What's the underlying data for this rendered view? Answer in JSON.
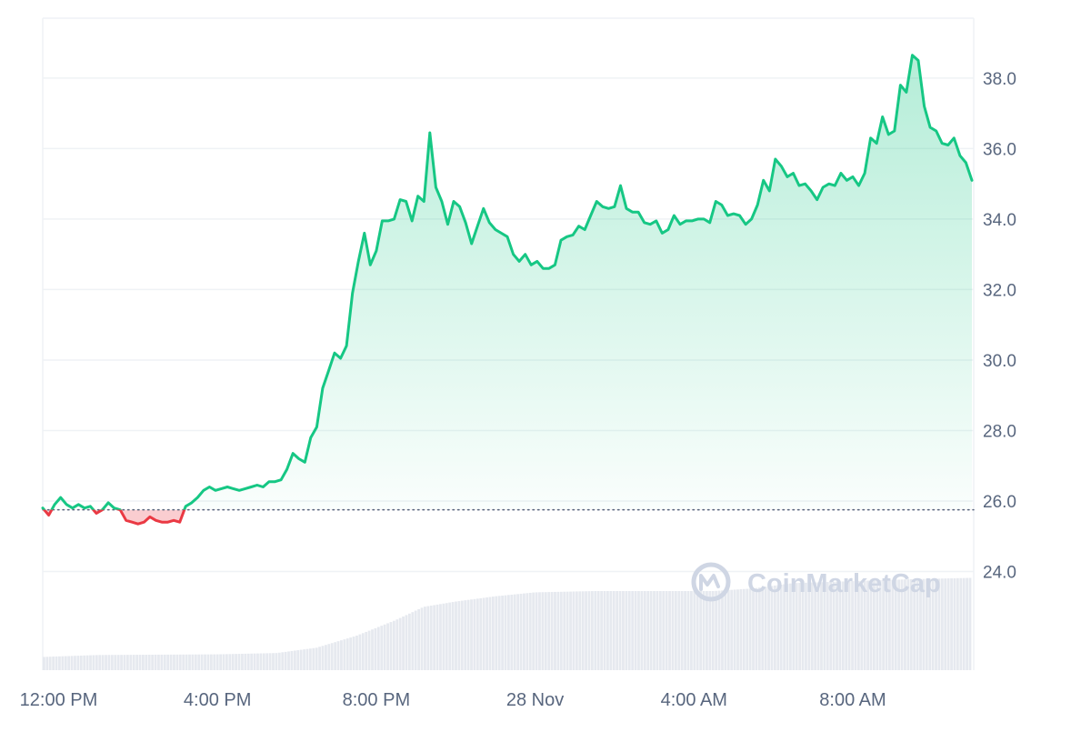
{
  "chart_data": {
    "type": "area",
    "title": "",
    "xlabel": "",
    "ylabel": "",
    "ylim": [
      21.2,
      39.7
    ],
    "x_range": [
      11.6,
      35.0
    ],
    "reference_price": 25.75,
    "y_ticks": [
      {
        "value": 24,
        "label": "24.0"
      },
      {
        "value": 26,
        "label": "26.0"
      },
      {
        "value": 28,
        "label": "28.0"
      },
      {
        "value": 30,
        "label": "30.0"
      },
      {
        "value": 32,
        "label": "32.0"
      },
      {
        "value": 34,
        "label": "34.0"
      },
      {
        "value": 36,
        "label": "36.0"
      },
      {
        "value": 38,
        "label": "38.0"
      }
    ],
    "x_ticks": [
      {
        "value": 12,
        "label": "12:00 PM"
      },
      {
        "value": 16,
        "label": "4:00 PM"
      },
      {
        "value": 20,
        "label": "8:00 PM"
      },
      {
        "value": 24,
        "label": "28 Nov"
      },
      {
        "value": 28,
        "label": "4:00 AM"
      },
      {
        "value": 32,
        "label": "8:00 AM"
      }
    ],
    "series": [
      {
        "values": [
          [
            11.6,
            25.8
          ],
          [
            11.75,
            25.6
          ],
          [
            11.9,
            25.9
          ],
          [
            12.05,
            26.1
          ],
          [
            12.2,
            25.9
          ],
          [
            12.35,
            25.8
          ],
          [
            12.5,
            25.9
          ],
          [
            12.65,
            25.8
          ],
          [
            12.8,
            25.85
          ],
          [
            12.95,
            25.65
          ],
          [
            13.1,
            25.75
          ],
          [
            13.25,
            25.95
          ],
          [
            13.4,
            25.8
          ],
          [
            13.55,
            25.75
          ],
          [
            13.7,
            25.45
          ],
          [
            13.85,
            25.4
          ],
          [
            14.0,
            25.35
          ],
          [
            14.15,
            25.4
          ],
          [
            14.3,
            25.55
          ],
          [
            14.45,
            25.45
          ],
          [
            14.6,
            25.4
          ],
          [
            14.75,
            25.4
          ],
          [
            14.9,
            25.45
          ],
          [
            15.05,
            25.4
          ],
          [
            15.2,
            25.85
          ],
          [
            15.35,
            25.95
          ],
          [
            15.5,
            26.1
          ],
          [
            15.65,
            26.3
          ],
          [
            15.8,
            26.4
          ],
          [
            15.95,
            26.3
          ],
          [
            16.1,
            26.35
          ],
          [
            16.25,
            26.4
          ],
          [
            16.4,
            26.35
          ],
          [
            16.55,
            26.3
          ],
          [
            16.7,
            26.35
          ],
          [
            16.85,
            26.4
          ],
          [
            17.0,
            26.45
          ],
          [
            17.15,
            26.4
          ],
          [
            17.3,
            26.55
          ],
          [
            17.45,
            26.55
          ],
          [
            17.6,
            26.6
          ],
          [
            17.75,
            26.9
          ],
          [
            17.9,
            27.35
          ],
          [
            18.05,
            27.2
          ],
          [
            18.2,
            27.1
          ],
          [
            18.35,
            27.8
          ],
          [
            18.5,
            28.1
          ],
          [
            18.65,
            29.2
          ],
          [
            18.8,
            29.7
          ],
          [
            18.95,
            30.2
          ],
          [
            19.1,
            30.05
          ],
          [
            19.25,
            30.4
          ],
          [
            19.4,
            31.9
          ],
          [
            19.55,
            32.8
          ],
          [
            19.7,
            33.6
          ],
          [
            19.85,
            32.7
          ],
          [
            20.0,
            33.1
          ],
          [
            20.15,
            33.95
          ],
          [
            20.3,
            33.95
          ],
          [
            20.45,
            34.0
          ],
          [
            20.6,
            34.55
          ],
          [
            20.75,
            34.5
          ],
          [
            20.9,
            33.95
          ],
          [
            21.05,
            34.65
          ],
          [
            21.2,
            34.5
          ],
          [
            21.35,
            36.45
          ],
          [
            21.5,
            34.9
          ],
          [
            21.65,
            34.5
          ],
          [
            21.8,
            33.85
          ],
          [
            21.95,
            34.5
          ],
          [
            22.1,
            34.35
          ],
          [
            22.25,
            33.9
          ],
          [
            22.4,
            33.3
          ],
          [
            22.55,
            33.8
          ],
          [
            22.7,
            34.3
          ],
          [
            22.85,
            33.9
          ],
          [
            23.0,
            33.7
          ],
          [
            23.15,
            33.6
          ],
          [
            23.3,
            33.5
          ],
          [
            23.45,
            33.0
          ],
          [
            23.6,
            32.8
          ],
          [
            23.75,
            33.0
          ],
          [
            23.9,
            32.7
          ],
          [
            24.05,
            32.8
          ],
          [
            24.2,
            32.6
          ],
          [
            24.35,
            32.6
          ],
          [
            24.5,
            32.7
          ],
          [
            24.65,
            33.4
          ],
          [
            24.8,
            33.5
          ],
          [
            24.95,
            33.55
          ],
          [
            25.1,
            33.8
          ],
          [
            25.25,
            33.7
          ],
          [
            25.4,
            34.1
          ],
          [
            25.55,
            34.5
          ],
          [
            25.7,
            34.35
          ],
          [
            25.85,
            34.3
          ],
          [
            26.0,
            34.35
          ],
          [
            26.15,
            34.95
          ],
          [
            26.3,
            34.3
          ],
          [
            26.45,
            34.2
          ],
          [
            26.6,
            34.2
          ],
          [
            26.75,
            33.9
          ],
          [
            26.9,
            33.85
          ],
          [
            27.05,
            33.95
          ],
          [
            27.2,
            33.6
          ],
          [
            27.35,
            33.7
          ],
          [
            27.5,
            34.1
          ],
          [
            27.65,
            33.85
          ],
          [
            27.8,
            33.95
          ],
          [
            27.95,
            33.95
          ],
          [
            28.1,
            34.0
          ],
          [
            28.25,
            34.0
          ],
          [
            28.4,
            33.9
          ],
          [
            28.55,
            34.5
          ],
          [
            28.7,
            34.4
          ],
          [
            28.85,
            34.1
          ],
          [
            29.0,
            34.15
          ],
          [
            29.15,
            34.1
          ],
          [
            29.3,
            33.85
          ],
          [
            29.45,
            34.0
          ],
          [
            29.6,
            34.4
          ],
          [
            29.75,
            35.1
          ],
          [
            29.9,
            34.8
          ],
          [
            30.05,
            35.7
          ],
          [
            30.2,
            35.5
          ],
          [
            30.35,
            35.2
          ],
          [
            30.5,
            35.3
          ],
          [
            30.65,
            34.95
          ],
          [
            30.8,
            35.0
          ],
          [
            30.95,
            34.8
          ],
          [
            31.1,
            34.55
          ],
          [
            31.25,
            34.9
          ],
          [
            31.4,
            35.0
          ],
          [
            31.55,
            34.95
          ],
          [
            31.7,
            35.3
          ],
          [
            31.85,
            35.1
          ],
          [
            32.0,
            35.2
          ],
          [
            32.15,
            34.95
          ],
          [
            32.3,
            35.3
          ],
          [
            32.45,
            36.3
          ],
          [
            32.6,
            36.15
          ],
          [
            32.75,
            36.9
          ],
          [
            32.9,
            36.4
          ],
          [
            33.05,
            36.5
          ],
          [
            33.2,
            37.8
          ],
          [
            33.35,
            37.6
          ],
          [
            33.5,
            38.65
          ],
          [
            33.65,
            38.5
          ],
          [
            33.8,
            37.2
          ],
          [
            33.95,
            36.6
          ],
          [
            34.1,
            36.5
          ],
          [
            34.25,
            36.15
          ],
          [
            34.4,
            36.1
          ],
          [
            34.55,
            36.3
          ],
          [
            34.7,
            35.8
          ],
          [
            34.85,
            35.6
          ],
          [
            35.0,
            35.1
          ]
        ]
      }
    ],
    "volume": [
      [
        11.6,
        0.1
      ],
      [
        13.0,
        0.115
      ],
      [
        16.0,
        0.12
      ],
      [
        17.5,
        0.13
      ],
      [
        18.5,
        0.17
      ],
      [
        19.5,
        0.26
      ],
      [
        20.5,
        0.38
      ],
      [
        21.2,
        0.48
      ],
      [
        22.0,
        0.52
      ],
      [
        23.0,
        0.56
      ],
      [
        24.0,
        0.59
      ],
      [
        25.5,
        0.6
      ],
      [
        27.0,
        0.6
      ],
      [
        28.5,
        0.6
      ],
      [
        29.5,
        0.62
      ],
      [
        30.5,
        0.66
      ],
      [
        31.5,
        0.67
      ],
      [
        32.5,
        0.68
      ],
      [
        33.5,
        0.69
      ],
      [
        35.0,
        0.7
      ]
    ],
    "colors": {
      "up_line": "#16c784",
      "down_line": "#ea3943",
      "up_fill": "#16c784",
      "down_fill": "#ea3943",
      "grid": "#eff2f5",
      "reference_line": "#58667e",
      "volume_bar": "#e6e9ef",
      "tick_text": "#58667e"
    },
    "watermark": "CoinMarketCap",
    "legend": "none",
    "grid": true
  }
}
